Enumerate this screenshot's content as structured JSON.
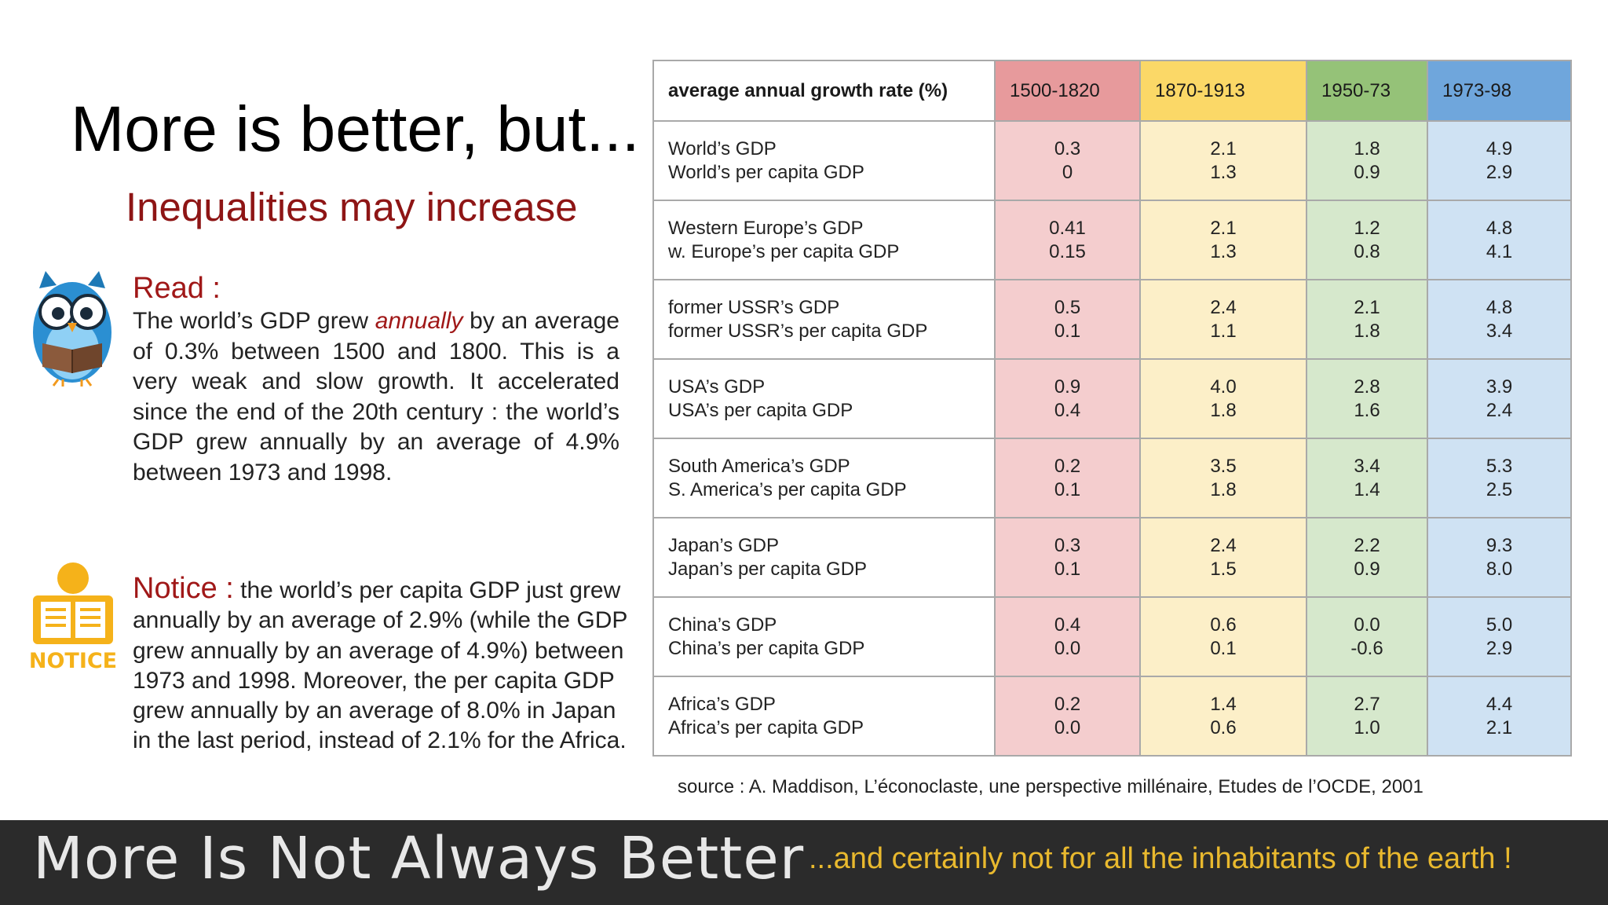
{
  "title": "More is better, but...",
  "subtitle": "Inequalities may increase",
  "read": {
    "heading": "Read :",
    "text_before": "The world’s GDP grew ",
    "emphasis": "annually",
    "text_after": " by an average of 0.3% between 1500 and 1800. This is a very weak and slow growth. It accelerated since the end of the 20th century : the world’s GDP grew annually by an average of 4.9% between 1973 and 1998."
  },
  "notice": {
    "icon_label": "NOTICE",
    "heading": "Notice :",
    "text": " the world’s per capita GDP just grew annually by an average of 2.9% (while the GDP grew annually by an average of 4.9%) between 1973 and 1998. Moreover, the per capita GDP grew annually by an average of 8.0% in Japan in the last period, instead of 2.1% for the Africa."
  },
  "table": {
    "header": [
      "average annual growth rate (%)",
      "1500-1820",
      "1870-1913",
      "1950-73",
      "1973-98"
    ],
    "header_colors": [
      "#ffffff",
      "#e79a9c",
      "#fbd867",
      "#95c278",
      "#6fa6dc"
    ],
    "rows": [
      {
        "label1": "World’s GDP",
        "label2": "World’s per capita GDP",
        "values": [
          [
            "0.3",
            "0"
          ],
          [
            "2.1",
            "1.3"
          ],
          [
            "1.8",
            "0.9"
          ],
          [
            "4.9",
            "2.9"
          ]
        ]
      },
      {
        "label1": "Western Europe’s GDP",
        "label2": "w. Europe’s per capita GDP",
        "values": [
          [
            "0.41",
            "0.15"
          ],
          [
            "2.1",
            "1.3"
          ],
          [
            "1.2",
            "0.8"
          ],
          [
            "4.8",
            "4.1"
          ]
        ]
      },
      {
        "label1": "former USSR’s GDP",
        "label2": "former USSR’s per capita GDP",
        "values": [
          [
            "0.5",
            "0.1"
          ],
          [
            "2.4",
            "1.1"
          ],
          [
            "2.1",
            "1.8"
          ],
          [
            "4.8",
            "3.4"
          ]
        ]
      },
      {
        "label1": "USA’s GDP",
        "label2": "USA’s per capita GDP",
        "values": [
          [
            "0.9",
            "0.4"
          ],
          [
            "4.0",
            "1.8"
          ],
          [
            "2.8",
            "1.6"
          ],
          [
            "3.9",
            "2.4"
          ]
        ]
      },
      {
        "label1": "South America’s GDP",
        "label2": "S. America’s per capita GDP",
        "values": [
          [
            "0.2",
            "0.1"
          ],
          [
            "3.5",
            "1.8"
          ],
          [
            "3.4",
            "1.4"
          ],
          [
            "5.3",
            "2.5"
          ]
        ]
      },
      {
        "label1": "Japan’s GDP",
        "label2": "Japan’s per capita GDP",
        "values": [
          [
            "0.3",
            "0.1"
          ],
          [
            "2.4",
            "1.5"
          ],
          [
            "2.2",
            "0.9"
          ],
          [
            "9.3",
            "8.0"
          ]
        ]
      },
      {
        "label1": "China’s GDP",
        "label2": "China’s per capita GDP",
        "values": [
          [
            "0.4",
            "0.0"
          ],
          [
            "0.6",
            "0.1"
          ],
          [
            "0.0",
            "-0.6"
          ],
          [
            "5.0",
            "2.9"
          ]
        ]
      },
      {
        "label1": "Africa’s GDP",
        "label2": "Africa’s per capita GDP",
        "values": [
          [
            "0.2",
            "0.0"
          ],
          [
            "1.4",
            "0.6"
          ],
          [
            "2.7",
            "1.0"
          ],
          [
            "4.4",
            "2.1"
          ]
        ]
      }
    ]
  },
  "source": "source : A. Maddison, L’éconoclaste, une perspective millénaire, Etudes de l’OCDE, 2001",
  "footer": {
    "brand": "More Is Not Always Better",
    "tagline": "...and certainly not for all the inhabitants of the earth !"
  },
  "icons": {
    "read": "owl-reading-icon",
    "notice": "notice-reader-icon"
  }
}
